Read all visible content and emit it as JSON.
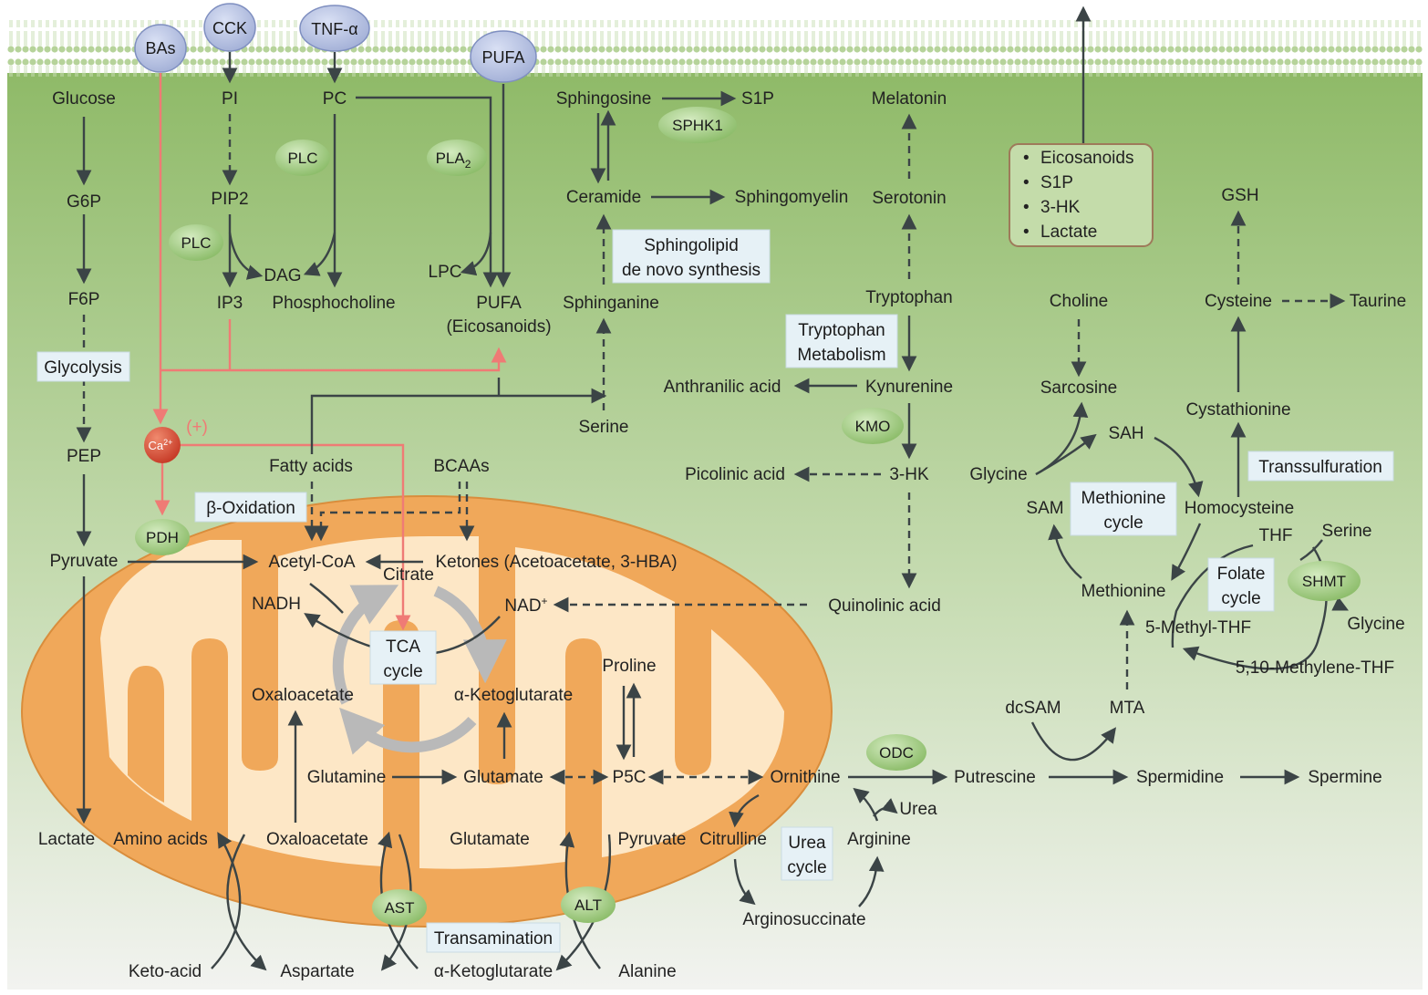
{
  "colors": {
    "membrane": "#a8c98a",
    "cytosol_top": "#8fba68",
    "cytosol_bottom": "#f4f4f2",
    "mito_outer": "#f0a85a",
    "mito_inner": "#fde7c6",
    "enzyme": "#8dbf6a",
    "receptor": "#aab6dc",
    "calcium": "#d9432e",
    "signal_red": "#ef7b75",
    "box_fill": "#e6f1f6"
  },
  "receptors": {
    "bas": "BAs",
    "cck": "CCK",
    "tnf": "TNF-α",
    "pufa": "PUFA"
  },
  "enzymes": {
    "plc1": "PLC",
    "plc2": "PLC",
    "pla2": "PLA",
    "pla2_sub": "2",
    "sphk1": "SPHK1",
    "kmo": "KMO",
    "pdh": "PDH",
    "odc": "ODC",
    "shmt": "SHMT",
    "ast": "AST",
    "alt": "ALT"
  },
  "calcium": {
    "label": "Ca",
    "sup": "2+",
    "effect": "(+)"
  },
  "boxes": {
    "glycolysis": "Glycolysis",
    "beta_oxidation": "β-Oxidation",
    "sphingo_1": "Sphingolipid",
    "sphingo_2": "de novo synthesis",
    "trp_1": "Tryptophan",
    "trp_2": "Metabolism",
    "tca_1": "TCA",
    "tca_2": "cycle",
    "urea_1": "Urea",
    "urea_2": "cycle",
    "transamination": "Transamination",
    "methionine_1": "Methionine",
    "methionine_2": "cycle",
    "folate_1": "Folate",
    "folate_2": "cycle",
    "transsulfuration": "Transsulfuration"
  },
  "export_list": [
    "Eicosanoids",
    "S1P",
    "3-HK",
    "Lactate"
  ],
  "export_bullet": "•",
  "metabolites": {
    "glucose": "Glucose",
    "g6p": "G6P",
    "f6p": "F6P",
    "pep": "PEP",
    "pyruvate": "Pyruvate",
    "lactate": "Lactate",
    "pi": "PI",
    "pip2": "PIP2",
    "ip3": "IP3",
    "dag": "DAG",
    "pc": "PC",
    "phosphocholine": "Phosphocholine",
    "lpc": "LPC",
    "pufa_1": "PUFA",
    "pufa_2": "(Eicosanoids)",
    "sphingosine": "Sphingosine",
    "s1p": "S1P",
    "ceramide": "Ceramide",
    "sphingomyelin": "Sphingomyelin",
    "sphinganine": "Sphinganine",
    "serine_mid": "Serine",
    "melatonin": "Melatonin",
    "serotonin": "Serotonin",
    "tryptophan": "Tryptophan",
    "kynurenine": "Kynurenine",
    "anthranilic": "Anthranilic acid",
    "hk3": "3-HK",
    "picolinic": "Picolinic acid",
    "quinolinic": "Quinolinic acid",
    "fatty_acids": "Fatty acids",
    "bcaas": "BCAAs",
    "acetyl_coa": "Acetyl-CoA",
    "ketones": "Ketones (Acetoacetate, 3-HBA)",
    "citrate": "Citrate",
    "nadh": "NADH",
    "nad": "NAD",
    "nad_sup": "+",
    "oxaloacetate_tca": "Oxaloacetate",
    "akg_tca": "α-Ketoglutarate",
    "glutamine": "Glutamine",
    "glutamate_mid": "Glutamate",
    "proline": "Proline",
    "p5c": "P5C",
    "ornithine": "Ornithine",
    "putrescine": "Putrescine",
    "spermidine": "Spermidine",
    "spermine": "Spermine",
    "citrulline": "Citrulline",
    "arginine": "Arginine",
    "urea": "Urea",
    "argininosuccinate": "Arginosuccinate",
    "amino_acids": "Amino acids",
    "oxaloacetate_bot": "Oxaloacetate",
    "glutamate_bot": "Glutamate",
    "pyruvate_bot": "Pyruvate",
    "keto_acid": "Keto-acid",
    "aspartate": "Aspartate",
    "akg_bot": "α-Ketoglutarate",
    "alanine": "Alanine",
    "gsh": "GSH",
    "choline": "Choline",
    "cysteine": "Cysteine",
    "taurine": "Taurine",
    "sarcosine": "Sarcosine",
    "cystathionine": "Cystathionine",
    "glycine_left": "Glycine",
    "sah": "SAH",
    "sam": "SAM",
    "homocysteine": "Homocysteine",
    "thf": "THF",
    "serine_right": "Serine",
    "methionine": "Methionine",
    "methyl_thf": "5-Methyl-THF",
    "glycine_right": "Glycine",
    "methylene_thf": "5,10-Methylene-THF",
    "dcsam": "dcSAM",
    "mta": "MTA"
  }
}
